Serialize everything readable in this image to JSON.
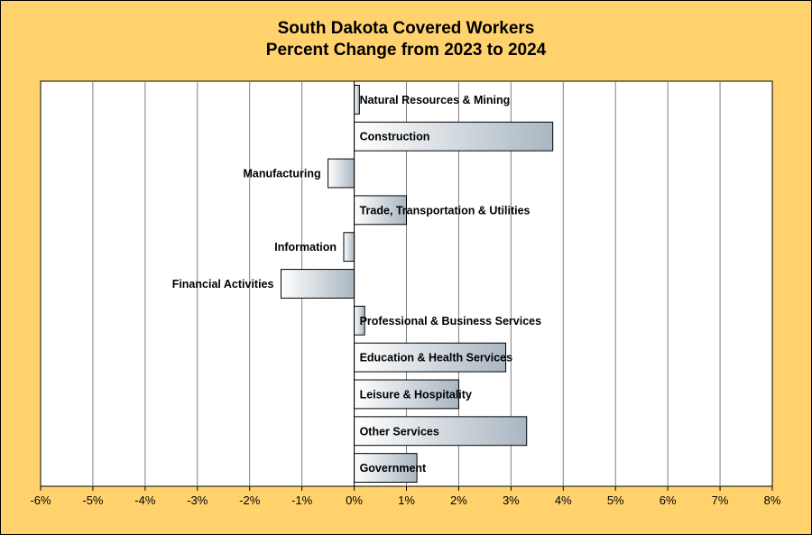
{
  "chart_data": {
    "type": "bar",
    "orientation": "horizontal",
    "title_line1": "South Dakota Covered Workers",
    "title_line2": "Percent Change from 2023 to 2024",
    "categories": [
      "Natural Resources & Mining",
      "Construction",
      "Manufacturing",
      "Trade, Transportation & Utilities",
      "Information",
      "Financial Activities",
      "Professional & Business Services",
      "Education & Health Services",
      "Leisure & Hospitality",
      "Other Services",
      "Government"
    ],
    "values": [
      0.1,
      3.8,
      -0.5,
      1.0,
      -0.2,
      -1.4,
      0.2,
      2.9,
      2.0,
      3.3,
      1.2
    ],
    "xlim": [
      -6,
      8
    ],
    "x_tick_step": 1,
    "x_tick_labels": [
      "-6%",
      "-5%",
      "-4%",
      "-3%",
      "-2%",
      "-1%",
      "0%",
      "1%",
      "2%",
      "3%",
      "4%",
      "5%",
      "6%",
      "7%",
      "8%"
    ],
    "xlabel": "",
    "ylabel": "",
    "grid": "vertical",
    "legend": "none",
    "colors": {
      "background": "#ffd26e",
      "plot_area": "#ffffff",
      "bar_gradient_start": "#ffffff",
      "bar_gradient_end": "#a9b6c1",
      "gridline": "#808080"
    }
  }
}
